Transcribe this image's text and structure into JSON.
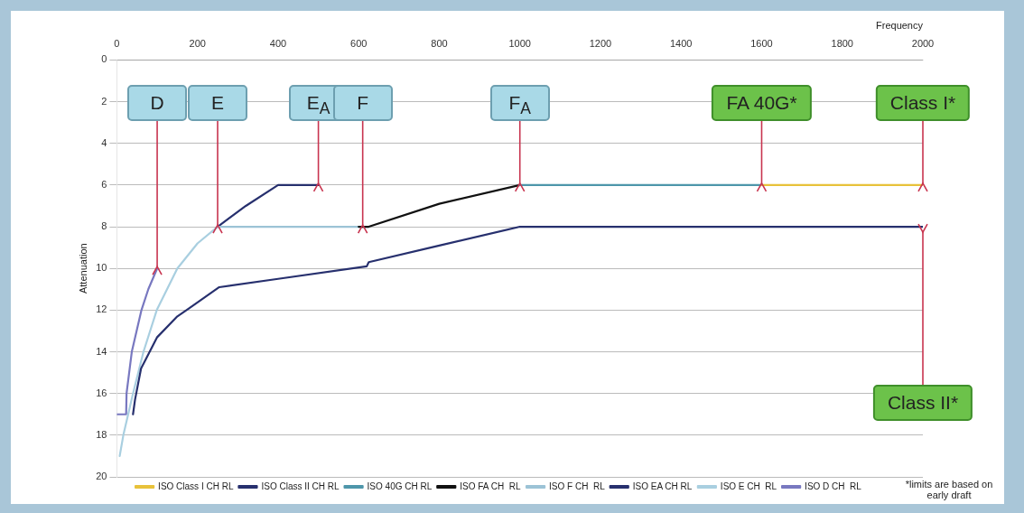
{
  "chart_data": {
    "type": "line",
    "xlabel": "Frequency",
    "ylabel": "Attenuation",
    "xlim": [
      0,
      2000
    ],
    "xticks": [
      0,
      200,
      400,
      600,
      800,
      1000,
      1200,
      1400,
      1600,
      1800,
      2000
    ],
    "ylim": [
      20,
      0
    ],
    "yticks": [
      0,
      2,
      4,
      6,
      8,
      10,
      12,
      14,
      16,
      18,
      20
    ],
    "grid": "y",
    "legend": "bottom",
    "series": [
      {
        "name": "ISO Class I CH RL",
        "color": "#e8c23a",
        "x": [
          1600,
          2000
        ],
        "values": [
          6,
          6
        ]
      },
      {
        "name": "ISO Class II CH RL",
        "color": "#27306e",
        "x": [
          40,
          45,
          60,
          100,
          150,
          180,
          254,
          400,
          620,
          625,
          800,
          1000,
          2000
        ],
        "values": [
          17,
          16.3,
          14.8,
          13.3,
          12.3,
          11.9,
          10.9,
          10.5,
          9.9,
          9.7,
          8.9,
          8,
          8
        ]
      },
      {
        "name": "ISO 40G CH RL",
        "color": "#4e96aa",
        "x": [
          1000,
          1600
        ],
        "values": [
          6,
          6
        ]
      },
      {
        "name": "ISO FA CH  RL",
        "color": "#111111",
        "x": [
          600,
          625,
          800,
          1000
        ],
        "values": [
          8,
          8,
          6.9,
          6
        ]
      },
      {
        "name": "ISO F CH  RL",
        "color": "#9cc3d6",
        "x": [
          250,
          625
        ],
        "values": [
          8,
          8
        ]
      },
      {
        "name": "ISO EA CH RL",
        "color": "#27306e",
        "x": [
          250,
          320,
          400,
          500
        ],
        "values": [
          8,
          7,
          6,
          6
        ]
      },
      {
        "name": "ISO E CH  RL",
        "color": "#a9cfe0",
        "x": [
          7,
          16,
          40,
          66,
          99,
          150,
          200,
          250
        ],
        "values": [
          19,
          18,
          16,
          14,
          12,
          10,
          8.8,
          8
        ]
      },
      {
        "name": "ISO D CH  RL",
        "color": "#7878c0",
        "x": [
          0,
          23,
          24,
          37,
          61,
          78,
          100
        ],
        "values": [
          17,
          17,
          16,
          14,
          12,
          11,
          10
        ]
      }
    ],
    "annotations": [
      {
        "text": "D",
        "x": 100,
        "y": 10
      },
      {
        "text": "E",
        "x": 250,
        "y": 8
      },
      {
        "text": "E$_{A}$",
        "x": 500,
        "y": 6
      },
      {
        "text": "F",
        "x": 610,
        "y": 8
      },
      {
        "text": "F$_{A}$",
        "x": 1000,
        "y": 6
      },
      {
        "text": "FA 40G*",
        "x": 1600,
        "y": 6
      },
      {
        "text": "Class I*",
        "x": 2000,
        "y": 6
      },
      {
        "text": "Class II*",
        "x": 2000,
        "y": 8
      },
      "*limits are based on early draft"
    ]
  }
}
